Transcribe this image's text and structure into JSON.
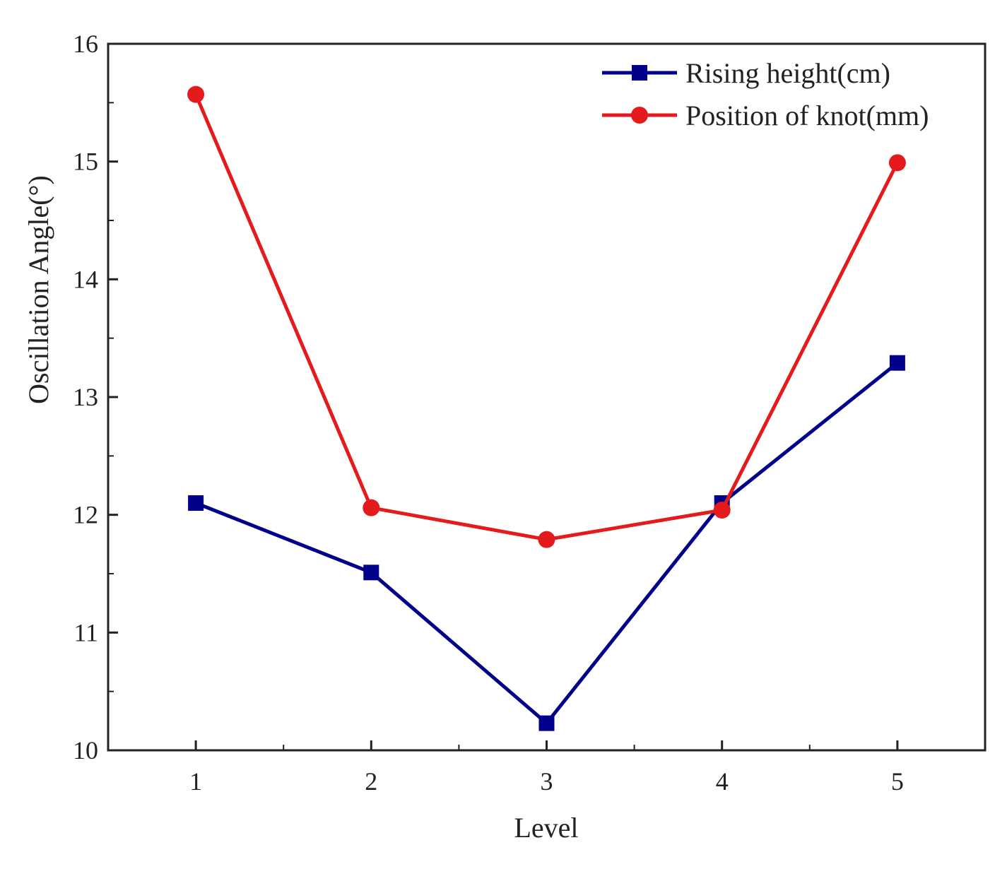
{
  "chart_data": {
    "type": "line",
    "title": "",
    "xlabel": "Level",
    "ylabel": "Oscillation Angle(°)",
    "categories": [
      "1",
      "2",
      "3",
      "4",
      "5"
    ],
    "x": [
      1,
      2,
      3,
      4,
      5
    ],
    "xlim": [
      0.5,
      5.5
    ],
    "ylim": [
      10,
      16
    ],
    "yticks": [
      10,
      11,
      12,
      13,
      14,
      15,
      16
    ],
    "grid": false,
    "legend_position": "top-right",
    "series": [
      {
        "name": "Rising height(cm)",
        "color": "#00008b",
        "marker": "square",
        "values": [
          12.1,
          11.51,
          10.23,
          12.1,
          13.29
        ]
      },
      {
        "name": "Position of knot(mm)",
        "color": "#e41a1c",
        "marker": "circle",
        "values": [
          15.57,
          12.06,
          11.79,
          12.04,
          14.99
        ]
      }
    ]
  }
}
